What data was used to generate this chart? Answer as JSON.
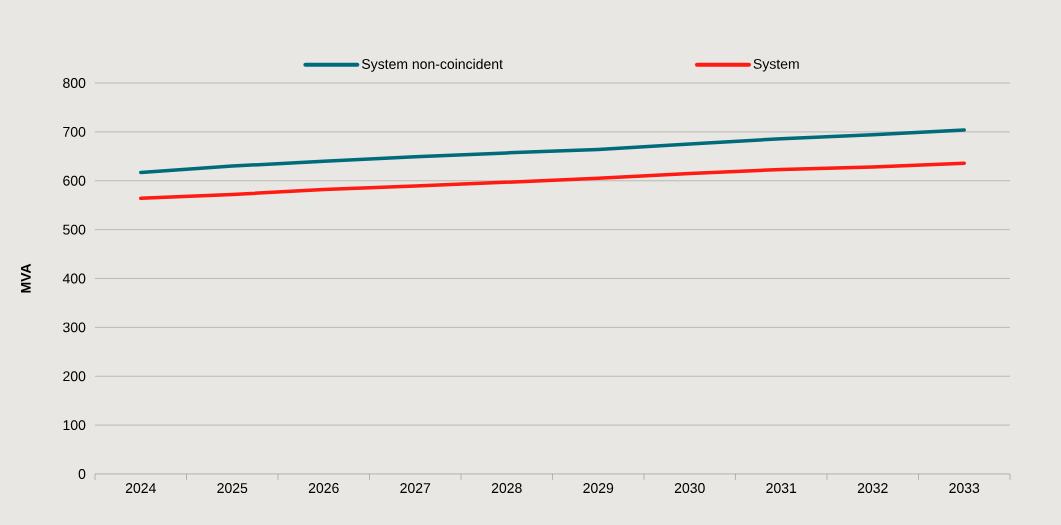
{
  "chart_data": {
    "type": "line",
    "ylabel": "MVA",
    "categories": [
      "2024",
      "2025",
      "2026",
      "2027",
      "2028",
      "2029",
      "2030",
      "2031",
      "2032",
      "2033"
    ],
    "series": [
      {
        "name": "System non-coincident",
        "color": "#006b7a",
        "values": [
          617,
          630,
          640,
          649,
          657,
          664,
          675,
          686,
          694,
          704
        ]
      },
      {
        "name": "System",
        "color": "#ff1a12",
        "values": [
          564,
          572,
          582,
          589,
          597,
          605,
          615,
          623,
          628,
          636
        ]
      }
    ],
    "ylim": [
      0,
      800
    ],
    "yticks": [
      0,
      100,
      200,
      300,
      400,
      500,
      600,
      700,
      800
    ],
    "grid": "y",
    "legend": "top",
    "marker": "none",
    "line_style": "solid"
  }
}
